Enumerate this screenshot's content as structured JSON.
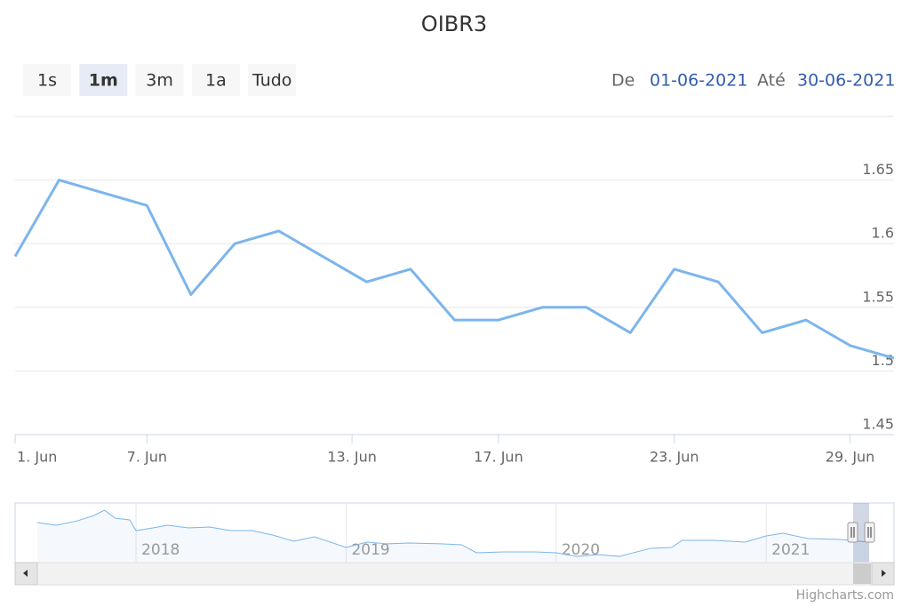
{
  "chart_data": {
    "type": "line",
    "title": "OIBR3",
    "range_buttons": [
      "1s",
      "1m",
      "3m",
      "1a",
      "Tudo"
    ],
    "selected_range": "1m",
    "range_from_label": "De",
    "range_from": "01-06-2021",
    "range_to_label": "Até",
    "range_to": "30-06-2021",
    "credits": "Highcharts.com",
    "x": [
      "2021-06-01",
      "2021-06-02",
      "2021-06-04",
      "2021-06-07",
      "2021-06-08",
      "2021-06-09",
      "2021-06-10",
      "2021-06-11",
      "2021-06-14",
      "2021-06-15",
      "2021-06-16",
      "2021-06-17",
      "2021-06-18",
      "2021-06-21",
      "2021-06-22",
      "2021-06-23",
      "2021-06-24",
      "2021-06-25",
      "2021-06-28",
      "2021-06-29",
      "2021-06-30"
    ],
    "series": [
      {
        "name": "OIBR3",
        "color": "#7cb5ec",
        "values": [
          1.59,
          1.65,
          1.64,
          1.63,
          1.56,
          1.6,
          1.61,
          1.59,
          1.57,
          1.58,
          1.54,
          1.54,
          1.55,
          1.55,
          1.53,
          1.58,
          1.57,
          1.53,
          1.54,
          1.52,
          1.51
        ]
      }
    ],
    "xticks": [
      {
        "value": "2021-06-01",
        "label": "1. Jun"
      },
      {
        "value": "2021-06-07",
        "label": "7. Jun"
      },
      {
        "value": "2021-06-13",
        "label": "13. Jun"
      },
      {
        "value": "2021-06-17",
        "label": "17. Jun"
      },
      {
        "value": "2021-06-23",
        "label": "23. Jun"
      },
      {
        "value": "2021-06-29",
        "label": "29. Jun"
      }
    ],
    "ylim": [
      1.45,
      1.7
    ],
    "yticks": [
      1.45,
      1.5,
      1.55,
      1.6,
      1.65
    ],
    "grid": true,
    "navigator": {
      "color": "#7cb5ec",
      "x": [
        2017.53,
        2017.62,
        2017.72,
        2017.8,
        2017.85,
        2017.9,
        2017.97,
        2018.0,
        2018.08,
        2018.15,
        2018.25,
        2018.35,
        2018.45,
        2018.55,
        2018.65,
        2018.75,
        2018.85,
        2018.95,
        2019.0,
        2019.1,
        2019.2,
        2019.3,
        2019.45,
        2019.55,
        2019.62,
        2019.75,
        2019.9,
        2020.0,
        2020.1,
        2020.2,
        2020.3,
        2020.45,
        2020.55,
        2020.6,
        2020.75,
        2020.9,
        2021.0,
        2021.08,
        2021.2,
        2021.35,
        2021.49
      ],
      "values": [
        3.33,
        3.11,
        3.48,
        3.94,
        4.39,
        3.71,
        3.56,
        2.65,
        2.88,
        3.11,
        2.88,
        2.95,
        2.65,
        2.65,
        2.27,
        1.74,
        2.12,
        1.52,
        1.21,
        1.67,
        1.52,
        1.59,
        1.52,
        1.44,
        0.76,
        0.83,
        0.83,
        0.76,
        0.45,
        0.61,
        0.45,
        1.14,
        1.21,
        1.82,
        1.82,
        1.67,
        2.2,
        2.42,
        1.97,
        1.89,
        1.67
      ],
      "xlim": [
        2017.53,
        2021.49
      ],
      "ylim": [
        0,
        5
      ],
      "xticks": [
        2018,
        2019,
        2020,
        2021
      ]
    }
  }
}
